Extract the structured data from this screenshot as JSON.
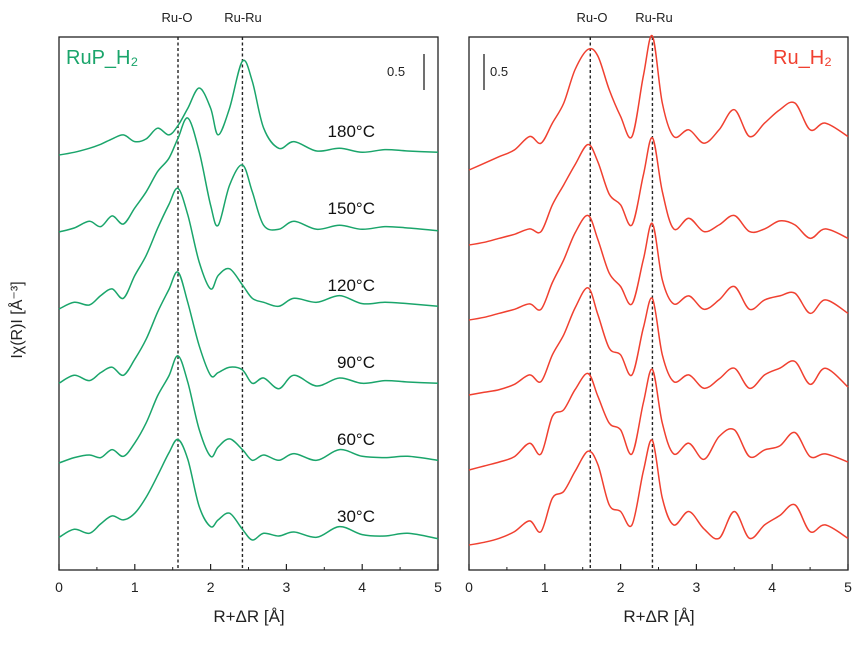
{
  "figure": {
    "ylabel": "Iχ(R)I [Å⁻³]"
  },
  "chart_data": [
    {
      "type": "line",
      "panel": "left",
      "title": "RuP_H₂",
      "title_color": "#1aa56b",
      "line_color": "#1aa56b",
      "xlabel": "R+ΔR [Å]",
      "xlim": [
        0,
        5
      ],
      "x_ticks": [
        "0",
        "1",
        "2",
        "3",
        "4",
        "5"
      ],
      "reference_lines": [
        {
          "label": "Ru-O",
          "x": 1.57
        },
        {
          "label": "Ru-Ru",
          "x": 2.42
        }
      ],
      "scale_bar": {
        "label": "0.5",
        "value": 0.5,
        "placement": "top-right"
      },
      "offset_step": 0.5,
      "series": [
        {
          "name": "30°C",
          "x": [
            0,
            0.2,
            0.4,
            0.55,
            0.7,
            0.85,
            1.0,
            1.15,
            1.3,
            1.45,
            1.57,
            1.7,
            1.85,
            2.0,
            2.1,
            2.25,
            2.42,
            2.55,
            2.7,
            2.9,
            3.1,
            3.4,
            3.7,
            4.0,
            4.3,
            4.6,
            5.0
          ],
          "y": [
            0.02,
            0.08,
            0.05,
            0.12,
            0.18,
            0.15,
            0.2,
            0.32,
            0.48,
            0.65,
            0.75,
            0.6,
            0.25,
            0.1,
            0.15,
            0.2,
            0.08,
            0.0,
            0.05,
            0.03,
            0.06,
            0.02,
            0.1,
            0.04,
            0.03,
            0.05,
            0.01
          ]
        },
        {
          "name": "60°C",
          "x": [
            0,
            0.2,
            0.4,
            0.55,
            0.7,
            0.85,
            1.0,
            1.15,
            1.3,
            1.45,
            1.57,
            1.7,
            1.85,
            2.0,
            2.1,
            2.25,
            2.42,
            2.55,
            2.7,
            2.9,
            3.1,
            3.4,
            3.7,
            4.0,
            4.3,
            4.6,
            5.0
          ],
          "y": [
            0.0,
            0.04,
            0.06,
            0.04,
            0.1,
            0.05,
            0.15,
            0.3,
            0.5,
            0.65,
            0.8,
            0.6,
            0.25,
            0.05,
            0.12,
            0.18,
            0.1,
            0.02,
            0.06,
            0.02,
            0.07,
            0.02,
            0.1,
            0.05,
            0.04,
            0.05,
            0.02
          ]
        },
        {
          "name": "90°C",
          "x": [
            0,
            0.2,
            0.4,
            0.55,
            0.7,
            0.85,
            1.0,
            1.15,
            1.3,
            1.45,
            1.57,
            1.7,
            1.85,
            2.0,
            2.1,
            2.25,
            2.42,
            2.55,
            2.7,
            2.9,
            3.1,
            3.4,
            3.7,
            4.0,
            4.3,
            4.6,
            5.0
          ],
          "y": [
            0.02,
            0.08,
            0.04,
            0.1,
            0.14,
            0.08,
            0.2,
            0.35,
            0.55,
            0.72,
            0.85,
            0.62,
            0.3,
            0.08,
            0.1,
            0.14,
            0.12,
            0.02,
            0.06,
            -0.02,
            0.08,
            0.0,
            0.06,
            0.02,
            0.04,
            0.03,
            0.02
          ]
        },
        {
          "name": "120°C",
          "x": [
            0,
            0.2,
            0.4,
            0.55,
            0.7,
            0.85,
            1.0,
            1.15,
            1.3,
            1.45,
            1.57,
            1.7,
            1.85,
            2.0,
            2.1,
            2.25,
            2.42,
            2.55,
            2.7,
            2.9,
            3.1,
            3.4,
            3.7,
            4.0,
            4.3,
            4.6,
            5.0
          ],
          "y": [
            0.0,
            0.05,
            0.03,
            0.1,
            0.15,
            0.08,
            0.25,
            0.4,
            0.6,
            0.78,
            0.9,
            0.7,
            0.35,
            0.15,
            0.25,
            0.3,
            0.18,
            0.08,
            0.05,
            0.02,
            0.08,
            0.05,
            0.1,
            0.04,
            0.05,
            0.04,
            0.02
          ]
        },
        {
          "name": "150°C",
          "x": [
            0,
            0.2,
            0.4,
            0.55,
            0.7,
            0.85,
            1.0,
            1.15,
            1.3,
            1.45,
            1.57,
            1.7,
            1.85,
            2.0,
            2.1,
            2.25,
            2.42,
            2.55,
            2.7,
            2.9,
            3.1,
            3.4,
            3.7,
            4.0,
            4.3,
            4.6,
            5.0
          ],
          "y": [
            0.0,
            0.03,
            0.08,
            0.04,
            0.12,
            0.06,
            0.18,
            0.3,
            0.45,
            0.55,
            0.7,
            0.85,
            0.6,
            0.2,
            0.05,
            0.35,
            0.5,
            0.3,
            0.05,
            0.02,
            0.08,
            0.02,
            0.05,
            0.02,
            0.04,
            0.03,
            0.01
          ]
        },
        {
          "name": "180°C",
          "x": [
            0,
            0.2,
            0.4,
            0.55,
            0.7,
            0.85,
            1.0,
            1.15,
            1.3,
            1.45,
            1.57,
            1.7,
            1.85,
            2.0,
            2.1,
            2.25,
            2.42,
            2.55,
            2.7,
            2.9,
            3.1,
            3.4,
            3.7,
            4.0,
            4.3,
            4.6,
            5.0
          ],
          "y": [
            0.0,
            0.02,
            0.05,
            0.08,
            0.12,
            0.15,
            0.1,
            0.12,
            0.2,
            0.15,
            0.22,
            0.35,
            0.5,
            0.35,
            0.15,
            0.35,
            0.7,
            0.55,
            0.2,
            0.05,
            0.1,
            0.03,
            0.05,
            0.02,
            0.04,
            0.03,
            0.02
          ]
        }
      ]
    },
    {
      "type": "line",
      "panel": "right",
      "title": "Ru_H₂",
      "title_color": "#f04030",
      "line_color": "#f04030",
      "xlabel": "R+ΔR [Å]",
      "xlim": [
        0,
        5
      ],
      "x_ticks": [
        "0",
        "1",
        "2",
        "3",
        "4",
        "5"
      ],
      "reference_lines": [
        {
          "label": "Ru-O",
          "x": 1.6
        },
        {
          "label": "Ru-Ru",
          "x": 2.42
        }
      ],
      "scale_bar": {
        "label": "0.5",
        "value": 0.5,
        "placement": "top-left"
      },
      "offset_step": 0.5,
      "series": [
        {
          "x": [
            0,
            0.2,
            0.4,
            0.6,
            0.8,
            0.95,
            1.1,
            1.25,
            1.4,
            1.57,
            1.7,
            1.85,
            2.0,
            2.15,
            2.3,
            2.42,
            2.55,
            2.7,
            2.9,
            3.1,
            3.3,
            3.5,
            3.7,
            3.9,
            4.1,
            4.3,
            4.5,
            4.7,
            5.0
          ],
          "y": [
            0.0,
            0.02,
            0.05,
            0.1,
            0.18,
            0.1,
            0.35,
            0.4,
            0.55,
            0.7,
            0.6,
            0.3,
            0.25,
            0.15,
            0.55,
            0.78,
            0.35,
            0.15,
            0.25,
            0.12,
            0.05,
            0.25,
            0.05,
            0.15,
            0.22,
            0.3,
            0.1,
            0.15,
            0.05
          ]
        },
        {
          "x": [
            0,
            0.2,
            0.4,
            0.6,
            0.8,
            0.95,
            1.1,
            1.25,
            1.4,
            1.57,
            1.7,
            1.85,
            2.0,
            2.15,
            2.3,
            2.42,
            2.55,
            2.7,
            2.9,
            3.1,
            3.3,
            3.5,
            3.7,
            3.9,
            4.1,
            4.3,
            4.5,
            4.7,
            5.0
          ],
          "y": [
            0.0,
            0.03,
            0.06,
            0.1,
            0.2,
            0.12,
            0.4,
            0.45,
            0.6,
            0.72,
            0.55,
            0.35,
            0.3,
            0.12,
            0.5,
            0.75,
            0.35,
            0.12,
            0.2,
            0.08,
            0.25,
            0.3,
            0.1,
            0.15,
            0.18,
            0.28,
            0.1,
            0.12,
            0.06
          ]
        },
        {
          "x": [
            0,
            0.2,
            0.4,
            0.6,
            0.8,
            0.95,
            1.1,
            1.25,
            1.4,
            1.57,
            1.7,
            1.85,
            2.0,
            2.15,
            2.3,
            2.42,
            2.55,
            2.7,
            2.9,
            3.1,
            3.3,
            3.5,
            3.7,
            3.9,
            4.1,
            4.3,
            4.5,
            4.7,
            5.0
          ],
          "y": [
            0.0,
            0.02,
            0.04,
            0.08,
            0.15,
            0.1,
            0.3,
            0.45,
            0.65,
            0.8,
            0.6,
            0.35,
            0.3,
            0.15,
            0.5,
            0.72,
            0.3,
            0.1,
            0.15,
            0.05,
            0.12,
            0.2,
            0.05,
            0.15,
            0.2,
            0.25,
            0.08,
            0.2,
            0.06
          ]
        },
        {
          "x": [
            0,
            0.2,
            0.4,
            0.6,
            0.8,
            0.95,
            1.1,
            1.25,
            1.4,
            1.57,
            1.7,
            1.85,
            2.0,
            2.15,
            2.3,
            2.42,
            2.55,
            2.7,
            2.9,
            3.1,
            3.3,
            3.5,
            3.7,
            3.9,
            4.1,
            4.3,
            4.5,
            4.7,
            5.0
          ],
          "y": [
            0.0,
            0.02,
            0.05,
            0.08,
            0.12,
            0.08,
            0.28,
            0.45,
            0.65,
            0.78,
            0.6,
            0.35,
            0.25,
            0.12,
            0.45,
            0.72,
            0.3,
            0.12,
            0.18,
            0.08,
            0.15,
            0.25,
            0.08,
            0.15,
            0.18,
            0.2,
            0.05,
            0.15,
            0.05
          ]
        },
        {
          "x": [
            0,
            0.2,
            0.4,
            0.6,
            0.8,
            0.95,
            1.1,
            1.25,
            1.4,
            1.57,
            1.7,
            1.85,
            2.0,
            2.15,
            2.3,
            2.42,
            2.55,
            2.7,
            2.9,
            3.1,
            3.3,
            3.5,
            3.7,
            3.9,
            4.1,
            4.3,
            4.5,
            4.7,
            5.0
          ],
          "y": [
            0.0,
            0.02,
            0.05,
            0.08,
            0.12,
            0.1,
            0.3,
            0.45,
            0.6,
            0.75,
            0.62,
            0.38,
            0.3,
            0.15,
            0.52,
            0.8,
            0.4,
            0.12,
            0.2,
            0.1,
            0.15,
            0.22,
            0.1,
            0.12,
            0.18,
            0.15,
            0.05,
            0.12,
            0.05
          ]
        },
        {
          "x": [
            0,
            0.2,
            0.4,
            0.6,
            0.8,
            0.95,
            1.1,
            1.25,
            1.4,
            1.57,
            1.7,
            1.85,
            2.0,
            2.15,
            2.3,
            2.42,
            2.55,
            2.7,
            2.9,
            3.1,
            3.3,
            3.5,
            3.7,
            3.9,
            4.1,
            4.3,
            4.5,
            4.7,
            5.0
          ],
          "y": [
            0.0,
            0.05,
            0.1,
            0.15,
            0.25,
            0.2,
            0.35,
            0.5,
            0.75,
            0.9,
            0.85,
            0.6,
            0.4,
            0.25,
            0.7,
            1.0,
            0.5,
            0.25,
            0.3,
            0.2,
            0.3,
            0.45,
            0.25,
            0.35,
            0.45,
            0.5,
            0.3,
            0.35,
            0.25
          ]
        }
      ]
    }
  ]
}
